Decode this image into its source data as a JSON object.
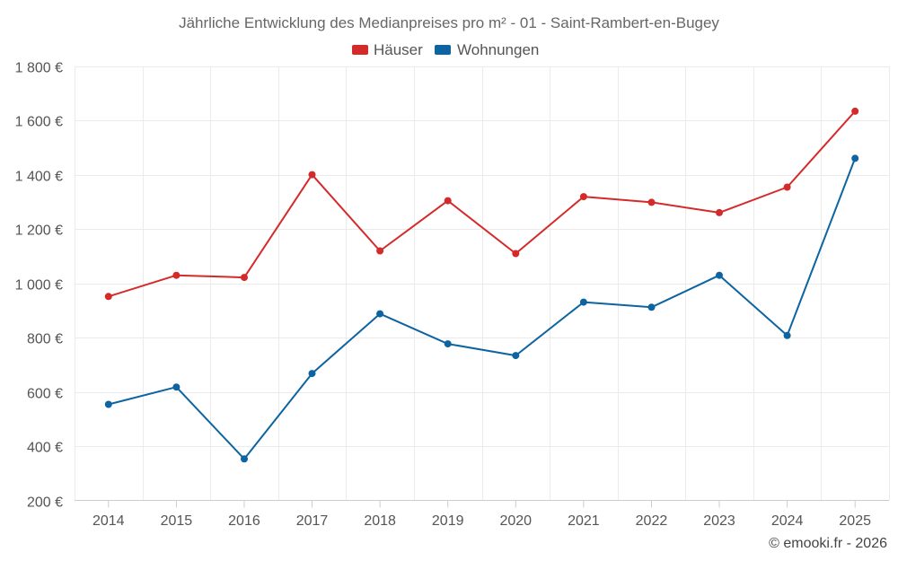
{
  "chart_data": {
    "type": "line",
    "title": "Jährliche Entwicklung des Medianpreises pro m² - 01 - Saint-Rambert-en-Bugey",
    "categories": [
      "2014",
      "2015",
      "2016",
      "2017",
      "2018",
      "2019",
      "2020",
      "2021",
      "2022",
      "2023",
      "2024",
      "2025"
    ],
    "series": [
      {
        "name": "Häuser",
        "color": "#d42a2a",
        "values": [
          952,
          1030,
          1022,
          1401,
          1120,
          1305,
          1110,
          1320,
          1299,
          1261,
          1355,
          1635
        ]
      },
      {
        "name": "Wohnungen",
        "color": "#0d64a0",
        "values": [
          554,
          618,
          353,
          668,
          888,
          777,
          734,
          931,
          912,
          1030,
          808,
          1461
        ]
      }
    ],
    "xlabel": "",
    "ylabel": "",
    "ylim": [
      200,
      1800
    ],
    "yticks": [
      200,
      400,
      600,
      800,
      1000,
      1200,
      1400,
      1600,
      1800
    ],
    "ytick_labels": [
      "200 €",
      "400 €",
      "600 €",
      "800 €",
      "1 000 €",
      "1 200 €",
      "1 400 €",
      "1 600 €",
      "1 800 €"
    ],
    "grid": true,
    "legend_position": "top-center"
  },
  "credit": "© emooki.fr - 2026"
}
